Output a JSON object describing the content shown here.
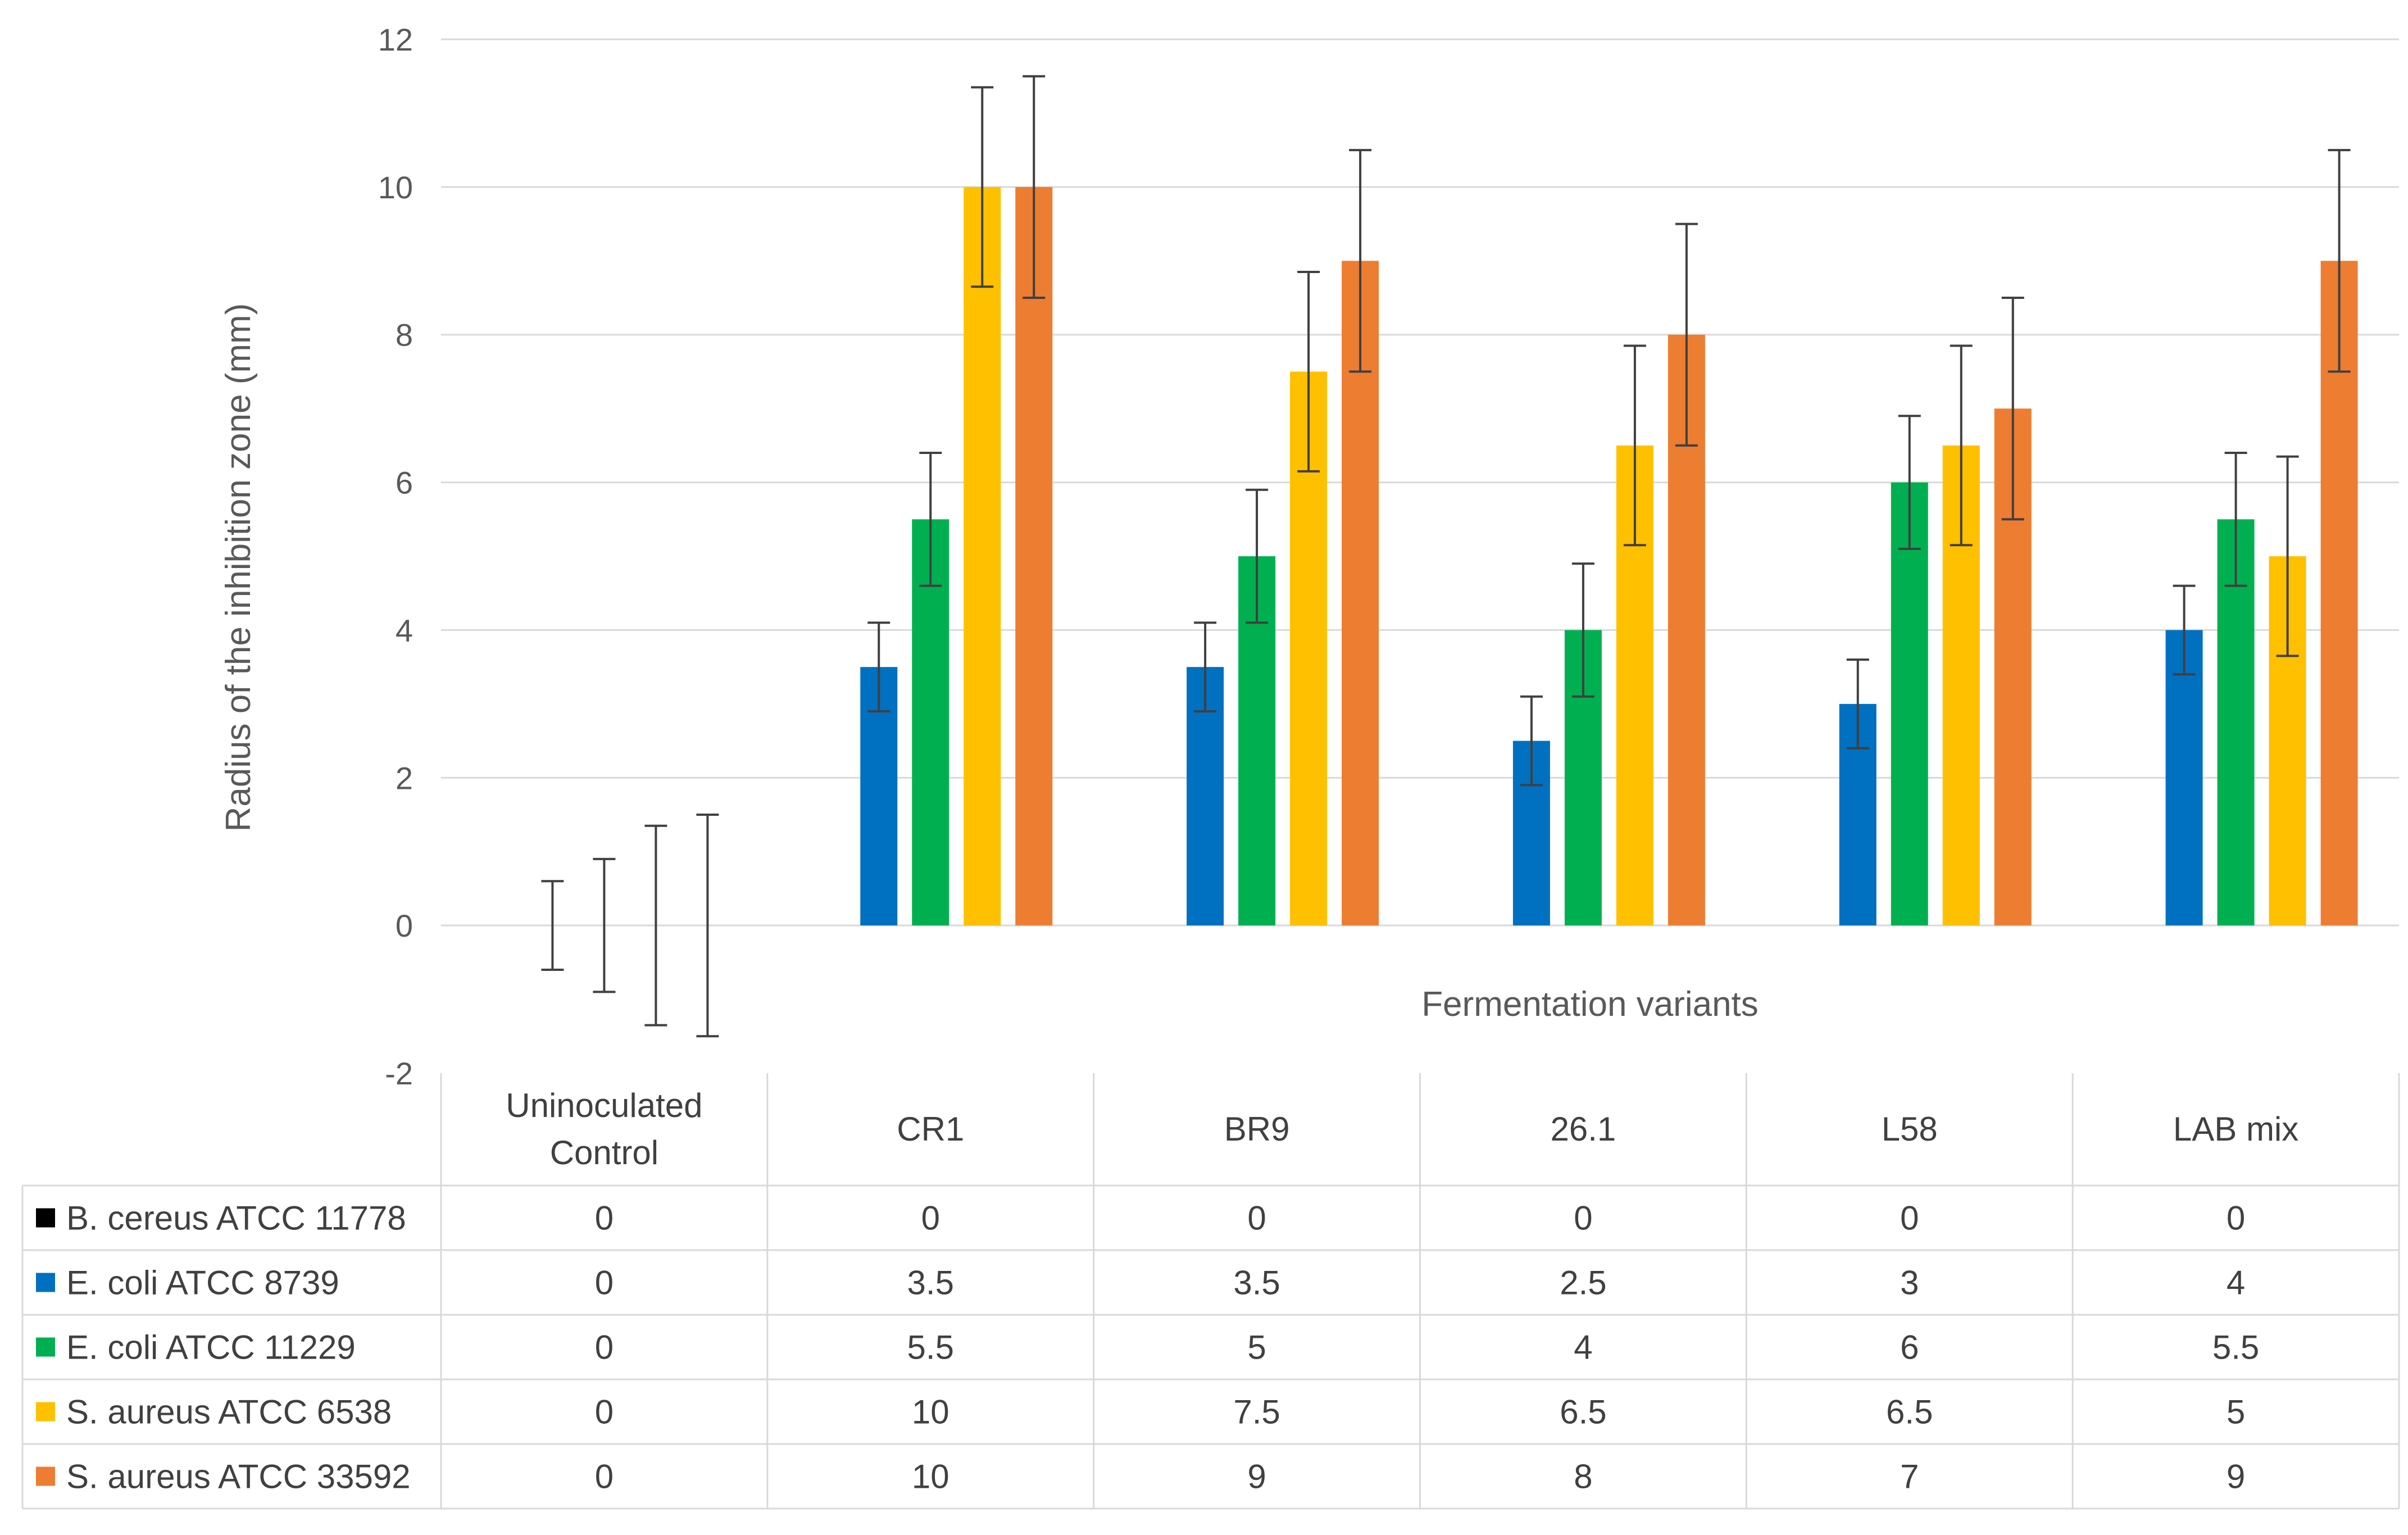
{
  "chart_data": {
    "type": "bar",
    "title": "",
    "ylabel": "Radius of the inhibition zone (mm)",
    "xlabel": "Fermentation variants",
    "ylim": [
      -2,
      12
    ],
    "yticks": [
      -2,
      0,
      2,
      4,
      6,
      8,
      10,
      12
    ],
    "grid": true,
    "legend": "data-table",
    "categories": [
      "Uninoculated\nControl",
      "CR1",
      "BR9",
      "26.1",
      "L58",
      "LAB mix"
    ],
    "series": [
      {
        "name": "B. cereus ATCC 11778",
        "color": "#000000",
        "values": [
          0,
          0,
          0,
          0,
          0,
          0
        ],
        "errors": [
          0,
          0,
          0,
          0,
          0,
          0
        ]
      },
      {
        "name": "E. coli ATCC 8739",
        "color": "#0070C0",
        "values": [
          0,
          3.5,
          3.5,
          2.5,
          3,
          4
        ],
        "errors": [
          0.6,
          0.6,
          0.6,
          0.6,
          0.6,
          0.6
        ]
      },
      {
        "name": "E. coli ATCC 11229",
        "color": "#00B050",
        "values": [
          0,
          5.5,
          5,
          4,
          6,
          5.5
        ],
        "errors": [
          0.9,
          0.9,
          0.9,
          0.9,
          0.9,
          0.9
        ]
      },
      {
        "name": "S. aureus ATCC 6538",
        "color": "#FFC000",
        "values": [
          0,
          10,
          7.5,
          6.5,
          6.5,
          5
        ],
        "errors": [
          1.35,
          1.35,
          1.35,
          1.35,
          1.35,
          1.35
        ]
      },
      {
        "name": "S. aureus ATCC 33592",
        "color": "#ED7D31",
        "values": [
          0,
          10,
          9,
          8,
          7,
          9
        ],
        "errors": [
          1.5,
          1.5,
          1.5,
          1.5,
          1.5,
          1.5
        ]
      }
    ]
  }
}
